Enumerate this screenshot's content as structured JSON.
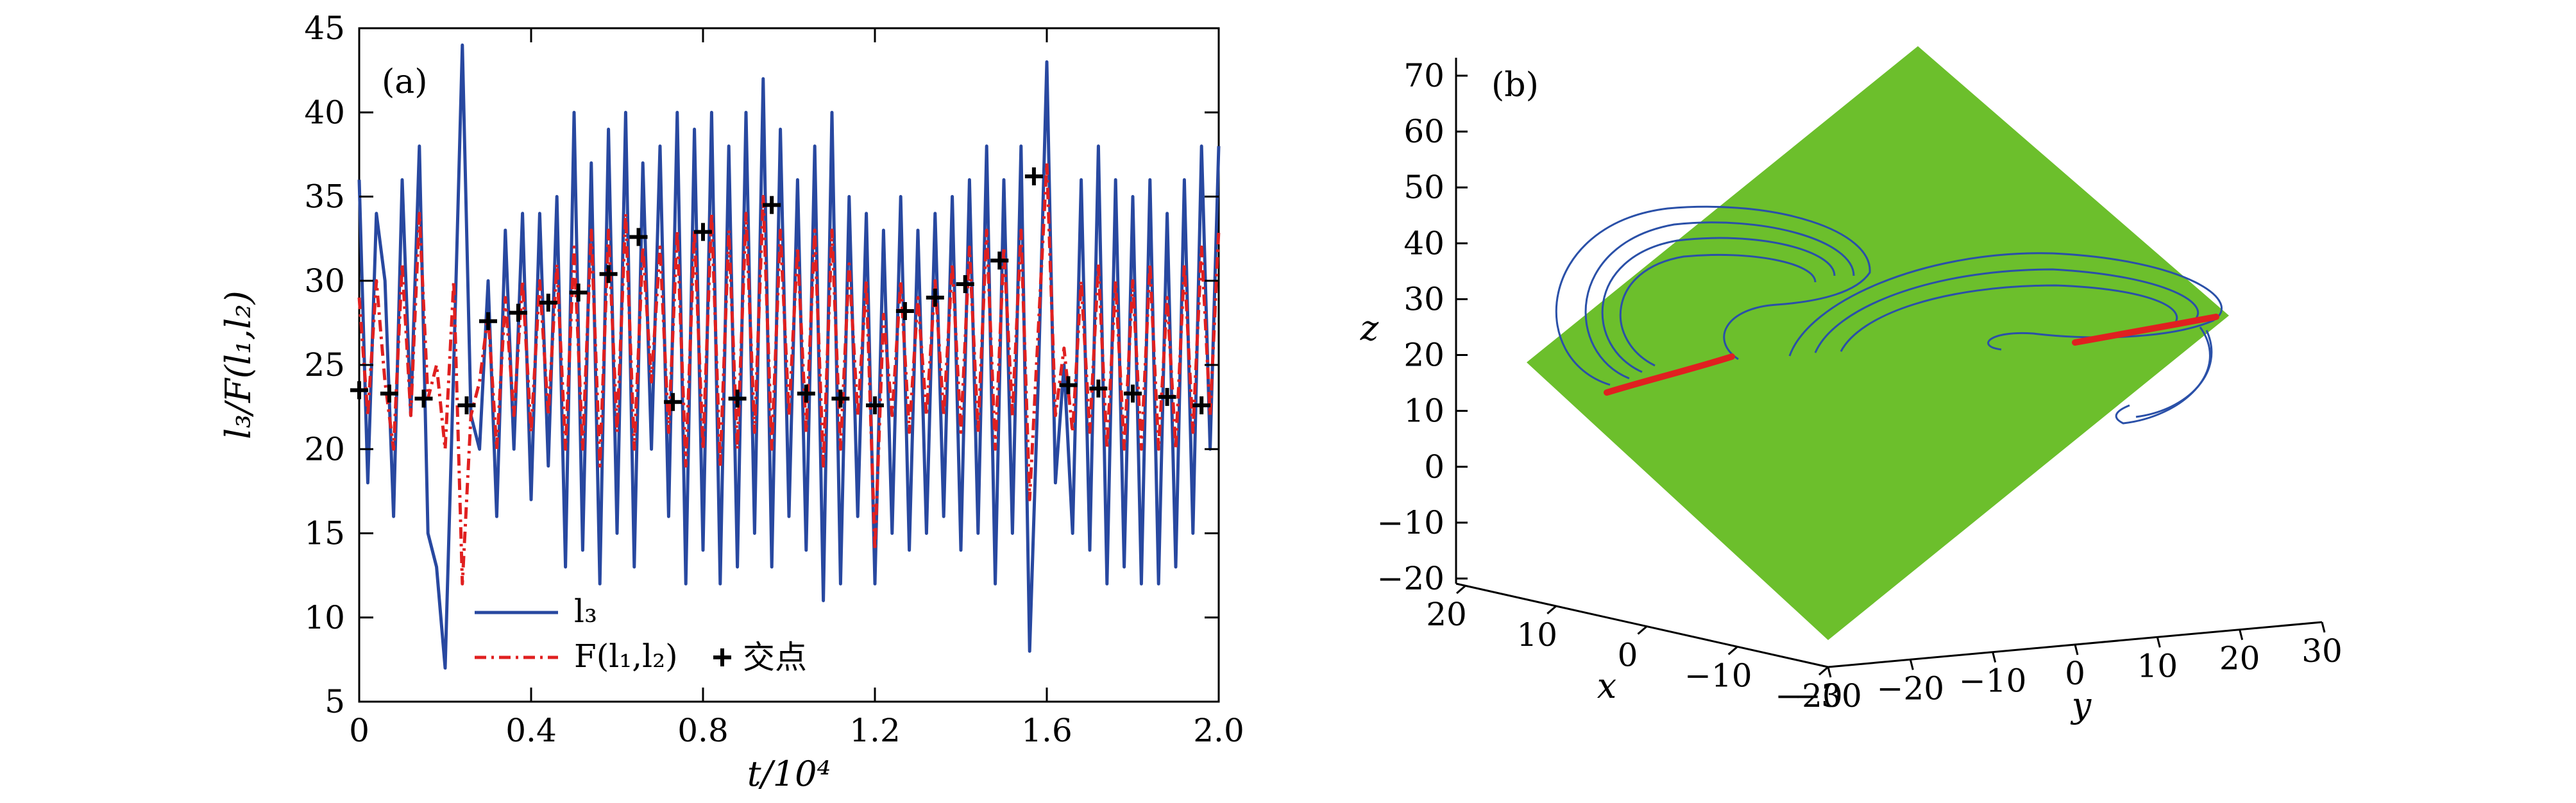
{
  "chart_data": [
    {
      "panel_label": "(a)",
      "type": "line",
      "xlabel": "t/10⁴",
      "ylabel": "l₃/F(l₁,l₂)",
      "xlim": [
        0,
        2.0
      ],
      "ylim": [
        5,
        45
      ],
      "xticks": [
        "0",
        "0.4",
        "0.8",
        "1.2",
        "1.6",
        "2.0"
      ],
      "yticks": [
        "5",
        "10",
        "15",
        "20",
        "25",
        "30",
        "35",
        "40",
        "45"
      ],
      "legend_position": "bottom-left",
      "series": [
        {
          "name": "l₃",
          "color": "#2848a0",
          "style": "solid",
          "x": [
            0,
            0.02,
            0.04,
            0.06,
            0.08,
            0.1,
            0.12,
            0.14,
            0.16,
            0.18,
            0.2,
            0.22,
            0.24,
            0.26,
            0.28,
            0.3,
            0.32,
            0.34,
            0.36,
            0.38,
            0.4,
            0.42,
            0.44,
            0.46,
            0.48,
            0.5,
            0.52,
            0.54,
            0.56,
            0.58,
            0.6,
            0.62,
            0.64,
            0.66,
            0.68,
            0.7,
            0.72,
            0.74,
            0.76,
            0.78,
            0.8,
            0.82,
            0.84,
            0.86,
            0.88,
            0.9,
            0.92,
            0.94,
            0.96,
            0.98,
            1.0,
            1.02,
            1.04,
            1.06,
            1.08,
            1.1,
            1.12,
            1.14,
            1.16,
            1.18,
            1.2,
            1.22,
            1.24,
            1.26,
            1.28,
            1.3,
            1.32,
            1.34,
            1.36,
            1.38,
            1.4,
            1.42,
            1.44,
            1.46,
            1.48,
            1.5,
            1.52,
            1.54,
            1.56,
            1.58,
            1.6,
            1.62,
            1.64,
            1.66,
            1.68,
            1.7,
            1.72,
            1.74,
            1.76,
            1.78,
            1.8,
            1.82,
            1.84,
            1.86,
            1.88,
            1.9,
            1.92,
            1.94,
            1.96,
            1.98,
            2.0
          ],
          "y": [
            36,
            18,
            34,
            30,
            16,
            36,
            22,
            38,
            15,
            13,
            7,
            25,
            44,
            22,
            20,
            30,
            16,
            33,
            20,
            34,
            17,
            34,
            19,
            35,
            13,
            40,
            14,
            37,
            12,
            39,
            15,
            40,
            13,
            37,
            20,
            38,
            16,
            40,
            12,
            39,
            14,
            40,
            12,
            38,
            13,
            40,
            15,
            42,
            13,
            39,
            16,
            36,
            14,
            38,
            11,
            40,
            12,
            35,
            16,
            34,
            12,
            33,
            15,
            35,
            14,
            33,
            15,
            34,
            16,
            35,
            14,
            36,
            15,
            38,
            12,
            36,
            15,
            38,
            8,
            24,
            43,
            18,
            25,
            15,
            36,
            14,
            38,
            12,
            36,
            13,
            35,
            12,
            36,
            12,
            34,
            13,
            36,
            15,
            38,
            20,
            38
          ]
        },
        {
          "name": "F(l₁,l₂)",
          "color": "#e02020",
          "style": "dashdot",
          "x": [
            0,
            0.02,
            0.04,
            0.06,
            0.08,
            0.1,
            0.12,
            0.14,
            0.16,
            0.18,
            0.2,
            0.22,
            0.24,
            0.26,
            0.28,
            0.3,
            0.32,
            0.34,
            0.36,
            0.38,
            0.4,
            0.42,
            0.44,
            0.46,
            0.48,
            0.5,
            0.52,
            0.54,
            0.56,
            0.58,
            0.6,
            0.62,
            0.64,
            0.66,
            0.68,
            0.7,
            0.72,
            0.74,
            0.76,
            0.78,
            0.8,
            0.82,
            0.84,
            0.86,
            0.88,
            0.9,
            0.92,
            0.94,
            0.96,
            0.98,
            1.0,
            1.02,
            1.04,
            1.06,
            1.08,
            1.1,
            1.12,
            1.14,
            1.16,
            1.18,
            1.2,
            1.22,
            1.24,
            1.26,
            1.28,
            1.3,
            1.32,
            1.34,
            1.36,
            1.38,
            1.4,
            1.42,
            1.44,
            1.46,
            1.48,
            1.5,
            1.52,
            1.54,
            1.56,
            1.58,
            1.6,
            1.62,
            1.64,
            1.66,
            1.68,
            1.7,
            1.72,
            1.74,
            1.76,
            1.78,
            1.8,
            1.82,
            1.84,
            1.86,
            1.88,
            1.9,
            1.92,
            1.94,
            1.96,
            1.98,
            2.0
          ],
          "y": [
            29,
            22,
            30,
            24,
            20,
            31,
            22,
            34,
            23,
            25,
            20,
            30,
            12,
            22,
            24,
            28,
            20,
            29,
            22,
            30,
            21,
            30,
            22,
            31,
            20,
            32,
            20,
            33,
            19,
            33,
            21,
            34,
            20,
            32,
            24,
            32,
            21,
            33,
            19,
            33,
            20,
            34,
            19,
            33,
            20,
            34,
            21,
            35,
            20,
            33,
            22,
            32,
            21,
            33,
            19,
            33,
            20,
            31,
            22,
            30,
            14,
            28,
            22,
            30,
            21,
            29,
            22,
            30,
            22,
            31,
            21,
            32,
            21,
            33,
            20,
            32,
            22,
            33,
            17,
            27,
            37,
            22,
            26,
            21,
            30,
            21,
            31,
            20,
            30,
            20,
            30,
            20,
            31,
            20,
            29,
            20,
            31,
            21,
            32,
            22,
            33
          ]
        }
      ],
      "markers": {
        "name": "交点",
        "color": "#000000",
        "x": [
          0.0,
          0.07,
          0.15,
          0.25,
          0.3,
          0.37,
          0.44,
          0.51,
          0.58,
          0.65,
          0.73,
          0.8,
          0.88,
          0.96,
          1.04,
          1.12,
          1.2,
          1.27,
          1.34,
          1.41,
          1.49,
          1.57,
          1.65,
          1.72,
          1.8,
          1.88,
          1.96
        ],
        "y": [
          23.5,
          23.3,
          23.0,
          22.6,
          27.6,
          28.1,
          28.7,
          29.3,
          30.4,
          32.6,
          22.8,
          32.9,
          23.0,
          34.5,
          23.3,
          23.0,
          22.6,
          28.2,
          29.0,
          29.8,
          31.2,
          36.2,
          23.8,
          23.6,
          23.3,
          23.1,
          22.6
        ]
      }
    },
    {
      "panel_label": "(b)",
      "type": "scatter",
      "xlabel": "x",
      "ylabel": "y",
      "zlabel": "z",
      "zlim": [
        -20,
        70
      ],
      "zticks": [
        "−20",
        "−10",
        "0",
        "10",
        "20",
        "30",
        "40",
        "50",
        "60",
        "70"
      ],
      "xticks": [
        "20",
        "10",
        "0",
        "−10",
        "−20"
      ],
      "yticks": [
        "−30",
        "−20",
        "−10",
        "0",
        "10",
        "20",
        "30"
      ],
      "surface_color": "#6cbf2c",
      "attractor_color": "#2a50a8",
      "section_color": "#e02020"
    }
  ]
}
